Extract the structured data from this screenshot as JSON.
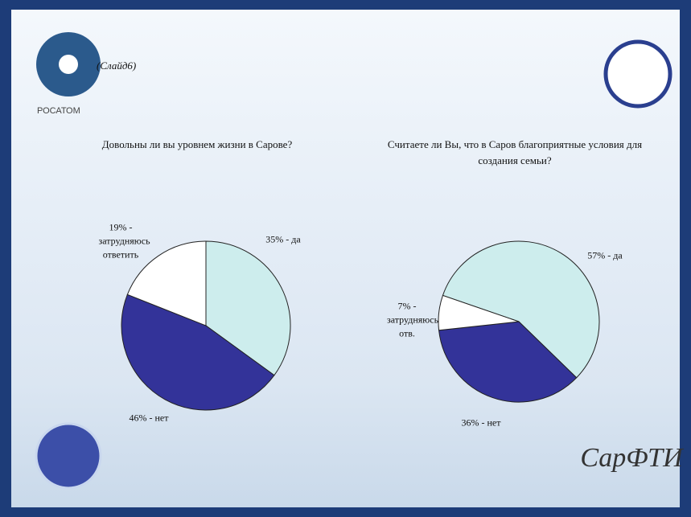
{
  "slide_label": "(Слайд6)",
  "logo_text": "РОСАТОМ",
  "chart_data": [
    {
      "type": "pie",
      "title": "Довольны ли вы уровнем жизни в Сарове?",
      "values": [
        35,
        46,
        19
      ],
      "value_labels": [
        "35% - да",
        "46% - нет",
        "19% - затрудняюсь ответить"
      ],
      "colors": [
        "#cdeded",
        "#333399",
        "#ffffff"
      ],
      "startangle": 0
    },
    {
      "type": "pie",
      "title": "Считаете ли Вы, что в Саров благоприятные условия для создания семьи?",
      "values": [
        57,
        36,
        7
      ],
      "value_labels": [
        "57% - да",
        "36% - нет",
        "7% - затрудняюсь отв."
      ],
      "colors": [
        "#cdeded",
        "#333399",
        "#ffffff"
      ],
      "startangle": -71
    }
  ]
}
